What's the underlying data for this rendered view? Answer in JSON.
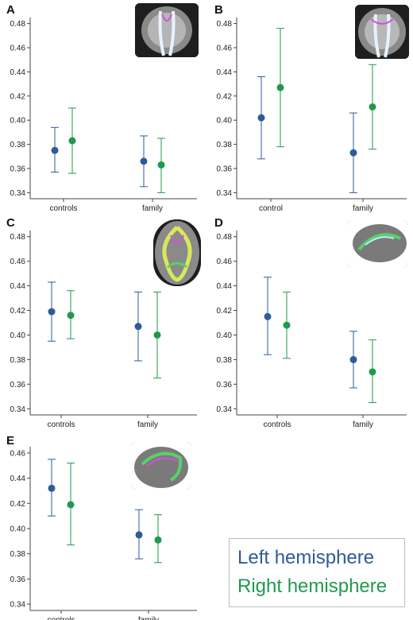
{
  "colors": {
    "left": "#2e5b9a",
    "right": "#1f9a4c",
    "axis": "#444444"
  },
  "legend": {
    "left_label": "Left hemisphere",
    "right_label": "Right hemisphere"
  },
  "chart_data": [
    {
      "panel": "A",
      "type": "scatter",
      "error_bars": true,
      "categories": [
        "controls",
        "family"
      ],
      "ylim": [
        0.335,
        0.485
      ],
      "yticks": [
        "0.34",
        "0.36",
        "0.38",
        "0.40",
        "0.42",
        "0.44",
        "0.46",
        "0.48"
      ],
      "series": [
        {
          "name": "Left hemisphere",
          "values": [
            0.375,
            0.366
          ],
          "lower": [
            0.357,
            0.345
          ],
          "upper": [
            0.394,
            0.387
          ]
        },
        {
          "name": "Right hemisphere",
          "values": [
            0.383,
            0.363
          ],
          "lower": [
            0.356,
            0.34
          ],
          "upper": [
            0.41,
            0.385
          ]
        }
      ]
    },
    {
      "panel": "B",
      "type": "scatter",
      "error_bars": true,
      "categories": [
        "control",
        "family"
      ],
      "ylim": [
        0.335,
        0.485
      ],
      "yticks": [
        "0.34",
        "0.36",
        "0.38",
        "0.40",
        "0.42",
        "0.44",
        "0.46",
        "0.48"
      ],
      "series": [
        {
          "name": "Left hemisphere",
          "values": [
            0.402,
            0.373
          ],
          "lower": [
            0.368,
            0.34
          ],
          "upper": [
            0.436,
            0.406
          ]
        },
        {
          "name": "Right hemisphere",
          "values": [
            0.427,
            0.411
          ],
          "lower": [
            0.378,
            0.376
          ],
          "upper": [
            0.476,
            0.446
          ]
        }
      ]
    },
    {
      "panel": "C",
      "type": "scatter",
      "error_bars": true,
      "categories": [
        "controls",
        "family"
      ],
      "ylim": [
        0.335,
        0.485
      ],
      "yticks": [
        "0.34",
        "0.36",
        "0.38",
        "0.40",
        "0.42",
        "0.44",
        "0.46",
        "0.48"
      ],
      "series": [
        {
          "name": "Left hemisphere",
          "values": [
            0.419,
            0.407
          ],
          "lower": [
            0.395,
            0.379
          ],
          "upper": [
            0.443,
            0.435
          ]
        },
        {
          "name": "Right hemisphere",
          "values": [
            0.416,
            0.4
          ],
          "lower": [
            0.397,
            0.365
          ],
          "upper": [
            0.436,
            0.435
          ]
        }
      ]
    },
    {
      "panel": "D",
      "type": "scatter",
      "error_bars": true,
      "categories": [
        "controls",
        "family"
      ],
      "ylim": [
        0.335,
        0.485
      ],
      "yticks": [
        "0.34",
        "0.36",
        "0.38",
        "0.40",
        "0.42",
        "0.44",
        "0.46",
        "0.48"
      ],
      "series": [
        {
          "name": "Left hemisphere",
          "values": [
            0.415,
            0.38
          ],
          "lower": [
            0.384,
            0.357
          ],
          "upper": [
            0.447,
            0.403
          ]
        },
        {
          "name": "Right hemisphere",
          "values": [
            0.408,
            0.37
          ],
          "lower": [
            0.381,
            0.345
          ],
          "upper": [
            0.435,
            0.396
          ]
        }
      ]
    },
    {
      "panel": "E",
      "type": "scatter",
      "error_bars": true,
      "categories": [
        "controls",
        "family"
      ],
      "ylim": [
        0.335,
        0.465
      ],
      "yticks": [
        "0.34",
        "0.36",
        "0.38",
        "0.40",
        "0.42",
        "0.44",
        "0.46"
      ],
      "series": [
        {
          "name": "Left hemisphere",
          "values": [
            0.432,
            0.395
          ],
          "lower": [
            0.41,
            0.376
          ],
          "upper": [
            0.455,
            0.415
          ]
        },
        {
          "name": "Right hemisphere",
          "values": [
            0.419,
            0.391
          ],
          "lower": [
            0.387,
            0.373
          ],
          "upper": [
            0.452,
            0.411
          ]
        }
      ]
    }
  ]
}
